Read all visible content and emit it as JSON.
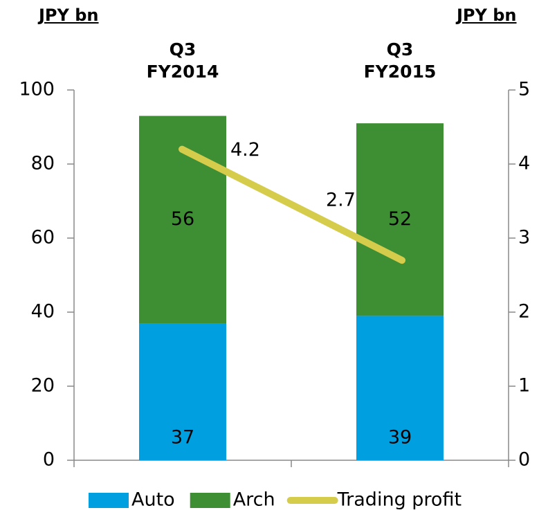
{
  "chart_data": {
    "type": "stacked_bar_line",
    "y_label": "JPY bn",
    "y2_label": "JPY bn",
    "categories": [
      "Q3\nFY2014",
      "Q3\nFY2015"
    ],
    "series": [
      {
        "name": "Auto",
        "type": "bar",
        "color": "#009fdf",
        "values": [
          37,
          39
        ]
      },
      {
        "name": "Arch",
        "type": "bar",
        "color": "#3e8e34",
        "values": [
          56,
          52
        ]
      },
      {
        "name": "Trading profit",
        "type": "line",
        "axis": "y2",
        "color": "#d6cc4c",
        "values": [
          4.2,
          2.7
        ]
      }
    ],
    "ylim": [
      0,
      100
    ],
    "yticks": [
      0,
      20,
      40,
      60,
      80,
      100
    ],
    "y2lim": [
      0,
      5
    ],
    "y2ticks": [
      0,
      1,
      2,
      3,
      4,
      5
    ],
    "grid": false,
    "legend": "bottom"
  }
}
